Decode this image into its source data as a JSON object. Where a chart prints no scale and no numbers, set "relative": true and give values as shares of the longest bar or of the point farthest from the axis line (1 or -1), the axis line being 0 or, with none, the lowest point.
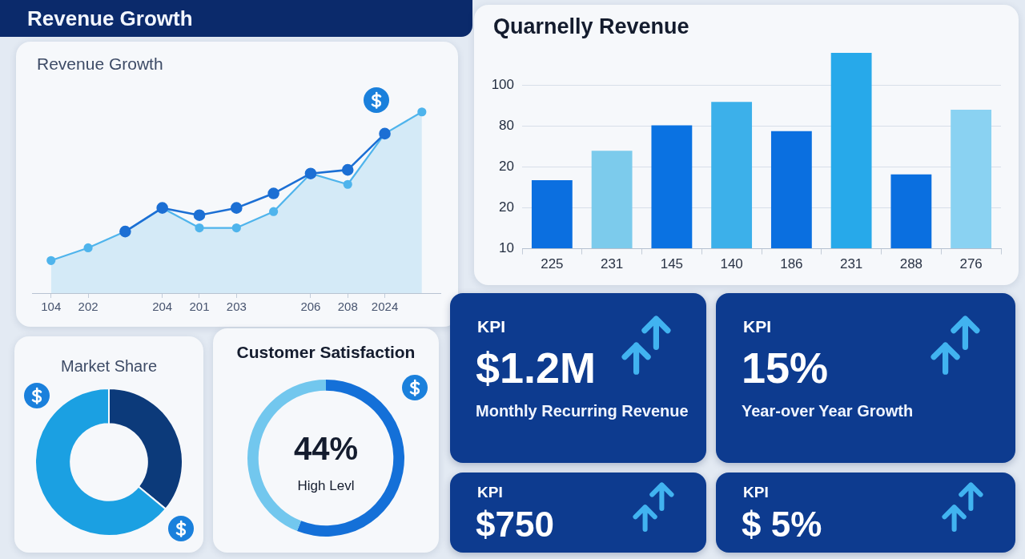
{
  "chart_data": [
    {
      "type": "line",
      "title": "Revenue Growth",
      "subtitle": "Revenue Growth",
      "relative": true,
      "categories": [
        "104",
        "202",
        null,
        "204",
        "201",
        "203",
        null,
        "206",
        "208",
        "2024",
        null
      ],
      "marker": "circle",
      "series": [
        {
          "type": "area",
          "color": "#4fb4ec",
          "values": [
            0.18,
            0.25,
            0.34,
            0.47,
            0.36,
            0.36,
            0.45,
            0.66,
            0.6,
            0.88,
            1
          ]
        },
        {
          "type": "line",
          "color": "#1c6fd4",
          "values": [
            null,
            null,
            0.34,
            0.47,
            0.43,
            0.47,
            0.55,
            0.66,
            0.68,
            0.88,
            null
          ]
        }
      ]
    },
    {
      "type": "bar",
      "title": "Quarnelly Revenue",
      "relative": true,
      "categories": [
        "225",
        "231",
        "145",
        "140",
        "186",
        "231",
        "288",
        "276"
      ],
      "values": [
        0.35,
        0.5,
        0.63,
        0.75,
        0.6,
        1,
        0.38,
        0.71
      ],
      "colors": [
        "#0b6fe0",
        "#7ccbec",
        "#0a72e2",
        "#3cb0ea",
        "#0a6fe0",
        "#27a9ea",
        "#0a6fe0",
        "#8ad2f2"
      ],
      "annotations": [
        "100",
        "80",
        "20",
        "20",
        "10"
      ],
      "grid": "y"
    },
    {
      "type": "donut",
      "title": "Market Share",
      "categories": [
        null,
        null
      ],
      "values": [
        36,
        64
      ],
      "colors": [
        "#0c3a7a",
        "#1ba0e2"
      ]
    },
    {
      "type": "donut",
      "title": "Customer Satisfaction",
      "categories": [
        null,
        null
      ],
      "values": [
        56,
        44
      ],
      "colors": [
        "#1470d8",
        "#72c7ee"
      ],
      "annotations": [
        "44%",
        "High Levl"
      ]
    },
    {
      "type": "other",
      "title": "KPI",
      "annotations": [
        "$1.2M",
        "Monthly Recurring Revenue"
      ]
    },
    {
      "type": "other",
      "title": "KPI",
      "annotations": [
        "15%",
        "Year-over Year Growth"
      ]
    },
    {
      "type": "other",
      "title": "KPI",
      "annotations": [
        "$750"
      ]
    },
    {
      "type": "other",
      "title": "KPI",
      "annotations": [
        "$ 5%"
      ]
    }
  ]
}
